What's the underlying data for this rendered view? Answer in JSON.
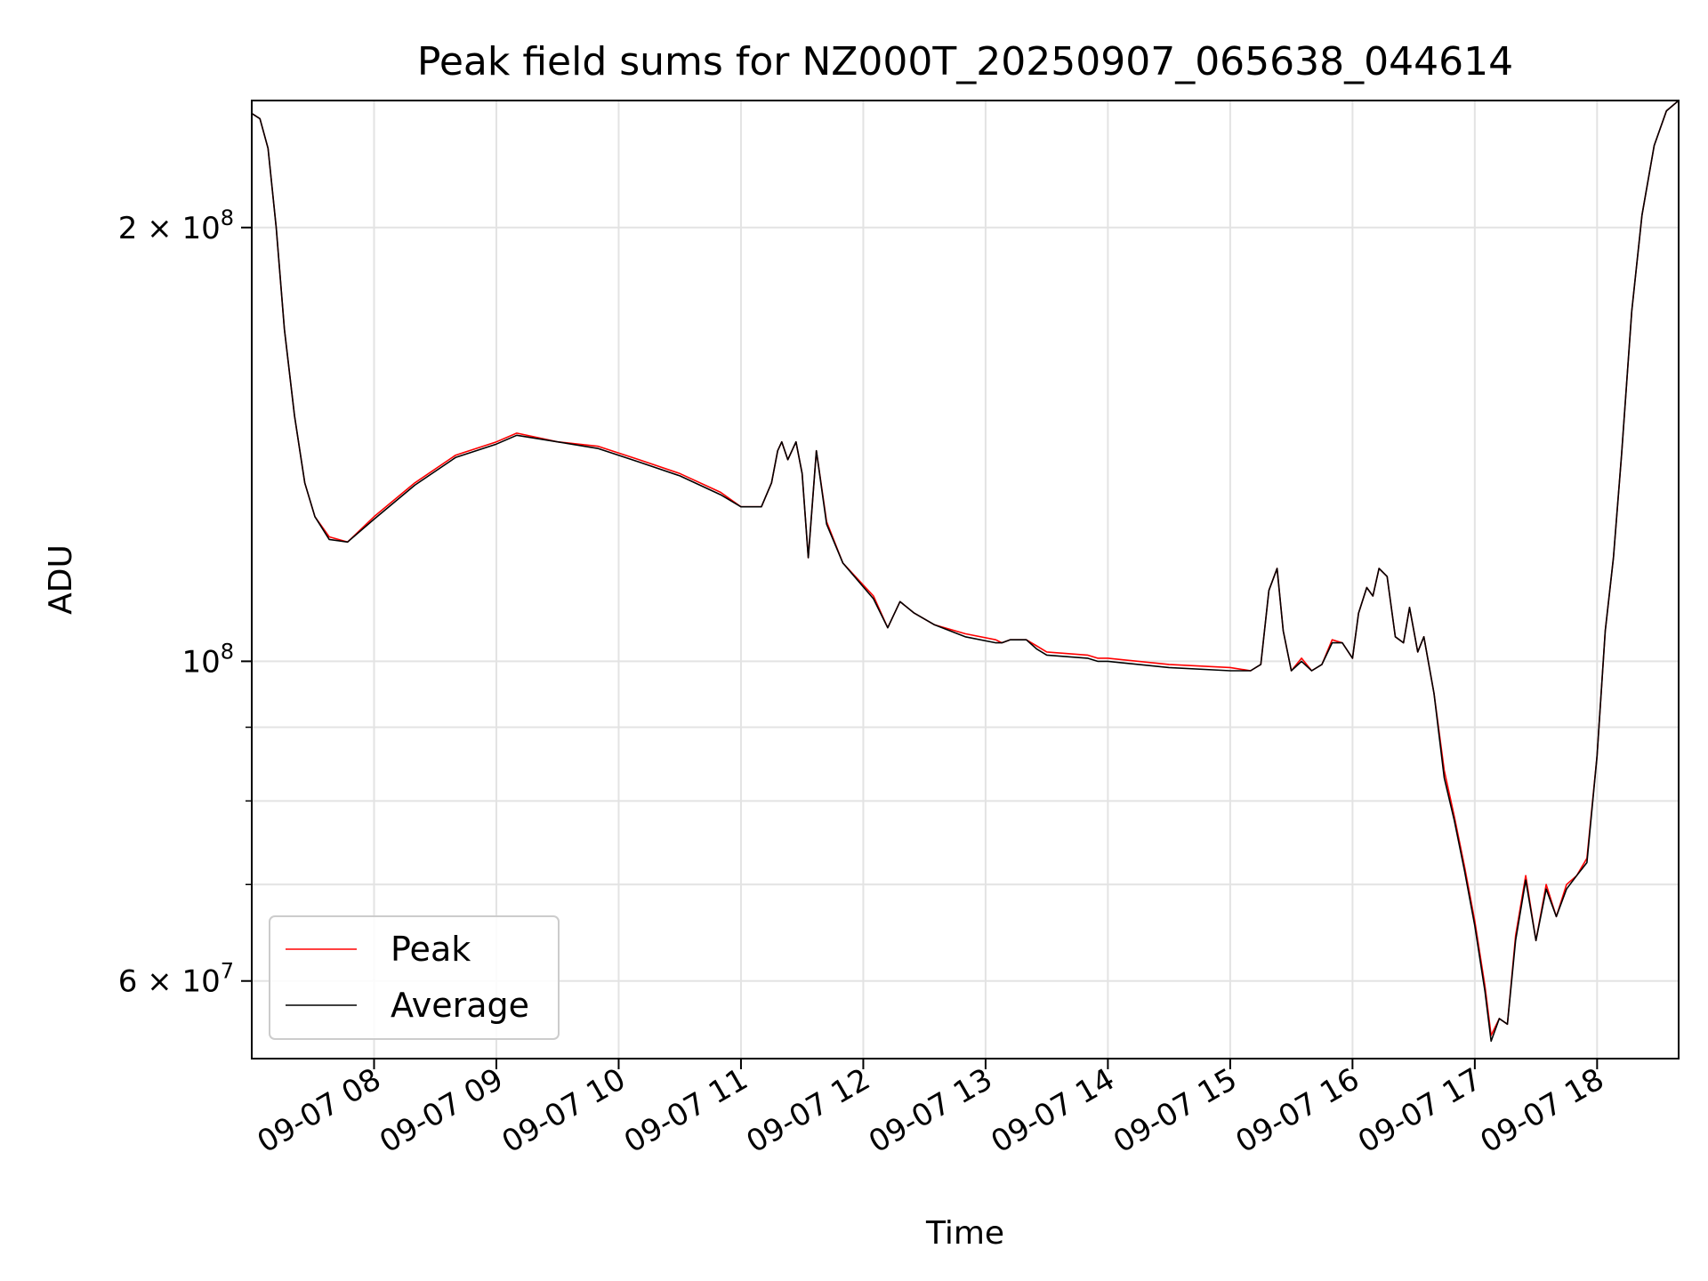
{
  "chart_data": {
    "type": "line",
    "title": "Peak field sums for NZ000T_20250907_065638_044614",
    "xlabel": "Time",
    "ylabel": "ADU",
    "y_scale": "log",
    "ylim": [
      53000000,
      245000000
    ],
    "xlim": [
      "2025-09-07 07:00",
      "2025-09-07 18:40"
    ],
    "grid": true,
    "legend_position": "lower-left",
    "x_ticks": [
      {
        "label": "09-07 08",
        "value": "2025-09-07 08:00"
      },
      {
        "label": "09-07 09",
        "value": "2025-09-07 09:00"
      },
      {
        "label": "09-07 10",
        "value": "2025-09-07 10:00"
      },
      {
        "label": "09-07 11",
        "value": "2025-09-07 11:00"
      },
      {
        "label": "09-07 12",
        "value": "2025-09-07 12:00"
      },
      {
        "label": "09-07 13",
        "value": "2025-09-07 13:00"
      },
      {
        "label": "09-07 14",
        "value": "2025-09-07 14:00"
      },
      {
        "label": "09-07 15",
        "value": "2025-09-07 15:00"
      },
      {
        "label": "09-07 16",
        "value": "2025-09-07 16:00"
      },
      {
        "label": "09-07 17",
        "value": "2025-09-07 17:00"
      },
      {
        "label": "09-07 18",
        "value": "2025-09-07 18:00"
      }
    ],
    "y_ticks_major": [
      {
        "mantissa": "6",
        "exp": "7",
        "value": 60000000
      },
      {
        "mantissa": "",
        "exp": "8",
        "value": 100000000
      },
      {
        "mantissa": "2",
        "exp": "8",
        "value": 200000000
      }
    ],
    "y_ticks_minor": [
      70000000,
      80000000,
      90000000
    ],
    "series": [
      {
        "name": "Peak",
        "color": "#ff0000",
        "x": [
          "2025-09-07 07:00",
          "2025-09-07 07:04",
          "2025-09-07 07:08",
          "2025-09-07 07:12",
          "2025-09-07 07:16",
          "2025-09-07 07:21",
          "2025-09-07 07:26",
          "2025-09-07 07:31",
          "2025-09-07 07:38",
          "2025-09-07 07:47",
          "2025-09-07 08:00",
          "2025-09-07 08:20",
          "2025-09-07 08:40",
          "2025-09-07 09:00",
          "2025-09-07 09:10",
          "2025-09-07 09:30",
          "2025-09-07 09:50",
          "2025-09-07 10:10",
          "2025-09-07 10:30",
          "2025-09-07 10:50",
          "2025-09-07 11:00",
          "2025-09-07 11:10",
          "2025-09-07 11:15",
          "2025-09-07 11:18",
          "2025-09-07 11:20",
          "2025-09-07 11:23",
          "2025-09-07 11:27",
          "2025-09-07 11:30",
          "2025-09-07 11:33",
          "2025-09-07 11:37",
          "2025-09-07 11:42",
          "2025-09-07 11:50",
          "2025-09-07 12:05",
          "2025-09-07 12:12",
          "2025-09-07 12:18",
          "2025-09-07 12:25",
          "2025-09-07 12:35",
          "2025-09-07 12:50",
          "2025-09-07 13:05",
          "2025-09-07 13:08",
          "2025-09-07 13:12",
          "2025-09-07 13:20",
          "2025-09-07 13:25",
          "2025-09-07 13:30",
          "2025-09-07 13:50",
          "2025-09-07 13:55",
          "2025-09-07 14:00",
          "2025-09-07 14:30",
          "2025-09-07 15:00",
          "2025-09-07 15:10",
          "2025-09-07 15:15",
          "2025-09-07 15:19",
          "2025-09-07 15:23",
          "2025-09-07 15:26",
          "2025-09-07 15:30",
          "2025-09-07 15:35",
          "2025-09-07 15:40",
          "2025-09-07 15:45",
          "2025-09-07 15:50",
          "2025-09-07 15:55",
          "2025-09-07 16:00",
          "2025-09-07 16:03",
          "2025-09-07 16:07",
          "2025-09-07 16:10",
          "2025-09-07 16:13",
          "2025-09-07 16:17",
          "2025-09-07 16:21",
          "2025-09-07 16:25",
          "2025-09-07 16:28",
          "2025-09-07 16:32",
          "2025-09-07 16:35",
          "2025-09-07 16:40",
          "2025-09-07 16:45",
          "2025-09-07 16:50",
          "2025-09-07 16:55",
          "2025-09-07 17:00",
          "2025-09-07 17:05",
          "2025-09-07 17:08",
          "2025-09-07 17:12",
          "2025-09-07 17:16",
          "2025-09-07 17:20",
          "2025-09-07 17:25",
          "2025-09-07 17:30",
          "2025-09-07 17:35",
          "2025-09-07 17:40",
          "2025-09-07 17:45",
          "2025-09-07 17:50",
          "2025-09-07 17:55",
          "2025-09-07 18:00",
          "2025-09-07 18:04",
          "2025-09-07 18:08",
          "2025-09-07 18:12",
          "2025-09-07 18:17",
          "2025-09-07 18:22",
          "2025-09-07 18:28",
          "2025-09-07 18:34",
          "2025-09-07 18:40"
        ],
        "y": [
          240000000,
          238000000,
          227000000,
          200000000,
          170000000,
          148000000,
          133000000,
          126000000,
          122000000,
          121000000,
          126000000,
          133000000,
          139000000,
          142000000,
          144000000,
          142000000,
          141000000,
          138000000,
          135000000,
          131000000,
          128000000,
          128000000,
          133000000,
          140000000,
          142000000,
          138000000,
          142000000,
          135000000,
          118000000,
          140000000,
          125000000,
          117000000,
          111000000,
          105500000,
          110000000,
          108000000,
          106000000,
          104500000,
          103500000,
          103000000,
          103500000,
          103500000,
          102500000,
          101500000,
          101000000,
          100500000,
          100500000,
          99500000,
          99000000,
          98500000,
          99500000,
          112000000,
          116000000,
          105000000,
          98500000,
          100500000,
          98500000,
          99500000,
          103500000,
          103000000,
          100500000,
          108000000,
          112500000,
          111000000,
          116000000,
          114500000,
          104000000,
          103000000,
          109000000,
          101500000,
          104000000,
          95000000,
          84000000,
          78000000,
          72000000,
          66000000,
          59500000,
          55000000,
          56500000,
          56000000,
          64500000,
          71000000,
          64000000,
          70000000,
          66500000,
          70000000,
          71000000,
          73000000,
          86000000,
          105000000,
          118000000,
          139000000,
          175000000,
          204000000,
          228000000,
          241000000,
          245000000
        ]
      },
      {
        "name": "Average",
        "color": "#000000",
        "x": [
          "2025-09-07 07:00",
          "2025-09-07 07:04",
          "2025-09-07 07:08",
          "2025-09-07 07:12",
          "2025-09-07 07:16",
          "2025-09-07 07:21",
          "2025-09-07 07:26",
          "2025-09-07 07:31",
          "2025-09-07 07:38",
          "2025-09-07 07:47",
          "2025-09-07 08:00",
          "2025-09-07 08:20",
          "2025-09-07 08:40",
          "2025-09-07 09:00",
          "2025-09-07 09:10",
          "2025-09-07 09:30",
          "2025-09-07 09:50",
          "2025-09-07 10:10",
          "2025-09-07 10:30",
          "2025-09-07 10:50",
          "2025-09-07 11:00",
          "2025-09-07 11:10",
          "2025-09-07 11:15",
          "2025-09-07 11:18",
          "2025-09-07 11:20",
          "2025-09-07 11:23",
          "2025-09-07 11:27",
          "2025-09-07 11:30",
          "2025-09-07 11:33",
          "2025-09-07 11:37",
          "2025-09-07 11:42",
          "2025-09-07 11:50",
          "2025-09-07 12:05",
          "2025-09-07 12:12",
          "2025-09-07 12:18",
          "2025-09-07 12:25",
          "2025-09-07 12:35",
          "2025-09-07 12:50",
          "2025-09-07 13:05",
          "2025-09-07 13:08",
          "2025-09-07 13:12",
          "2025-09-07 13:20",
          "2025-09-07 13:25",
          "2025-09-07 13:30",
          "2025-09-07 13:50",
          "2025-09-07 13:55",
          "2025-09-07 14:00",
          "2025-09-07 14:30",
          "2025-09-07 15:00",
          "2025-09-07 15:10",
          "2025-09-07 15:15",
          "2025-09-07 15:19",
          "2025-09-07 15:23",
          "2025-09-07 15:26",
          "2025-09-07 15:30",
          "2025-09-07 15:35",
          "2025-09-07 15:40",
          "2025-09-07 15:45",
          "2025-09-07 15:50",
          "2025-09-07 15:55",
          "2025-09-07 16:00",
          "2025-09-07 16:03",
          "2025-09-07 16:07",
          "2025-09-07 16:10",
          "2025-09-07 16:13",
          "2025-09-07 16:17",
          "2025-09-07 16:21",
          "2025-09-07 16:25",
          "2025-09-07 16:28",
          "2025-09-07 16:32",
          "2025-09-07 16:35",
          "2025-09-07 16:40",
          "2025-09-07 16:45",
          "2025-09-07 16:50",
          "2025-09-07 16:55",
          "2025-09-07 17:00",
          "2025-09-07 17:05",
          "2025-09-07 17:08",
          "2025-09-07 17:12",
          "2025-09-07 17:16",
          "2025-09-07 17:20",
          "2025-09-07 17:25",
          "2025-09-07 17:30",
          "2025-09-07 17:35",
          "2025-09-07 17:40",
          "2025-09-07 17:45",
          "2025-09-07 17:50",
          "2025-09-07 17:55",
          "2025-09-07 18:00",
          "2025-09-07 18:04",
          "2025-09-07 18:08",
          "2025-09-07 18:12",
          "2025-09-07 18:17",
          "2025-09-07 18:22",
          "2025-09-07 18:28",
          "2025-09-07 18:34",
          "2025-09-07 18:40"
        ],
        "y": [
          240000000,
          238000000,
          227000000,
          200000000,
          170000000,
          148000000,
          133000000,
          126000000,
          121500000,
          121000000,
          125500000,
          132500000,
          138500000,
          141500000,
          143500000,
          142000000,
          140500000,
          137500000,
          134500000,
          130500000,
          128000000,
          128000000,
          133000000,
          140000000,
          142000000,
          138000000,
          142000000,
          135000000,
          118000000,
          140000000,
          124500000,
          117000000,
          110500000,
          105500000,
          110000000,
          108000000,
          106000000,
          104000000,
          103000000,
          103000000,
          103500000,
          103500000,
          102000000,
          101000000,
          100500000,
          100000000,
          100000000,
          99000000,
          98500000,
          98500000,
          99500000,
          112000000,
          116000000,
          105000000,
          98500000,
          100000000,
          98500000,
          99500000,
          103000000,
          103000000,
          100500000,
          108000000,
          112500000,
          111000000,
          116000000,
          114500000,
          104000000,
          103000000,
          109000000,
          101500000,
          104000000,
          95000000,
          83000000,
          77500000,
          71500000,
          65500000,
          59000000,
          54500000,
          56500000,
          56000000,
          64000000,
          70500000,
          64000000,
          69500000,
          66500000,
          69500000,
          71000000,
          72500000,
          86000000,
          105000000,
          118000000,
          139000000,
          175000000,
          204000000,
          228000000,
          241000000,
          245000000
        ]
      }
    ]
  }
}
